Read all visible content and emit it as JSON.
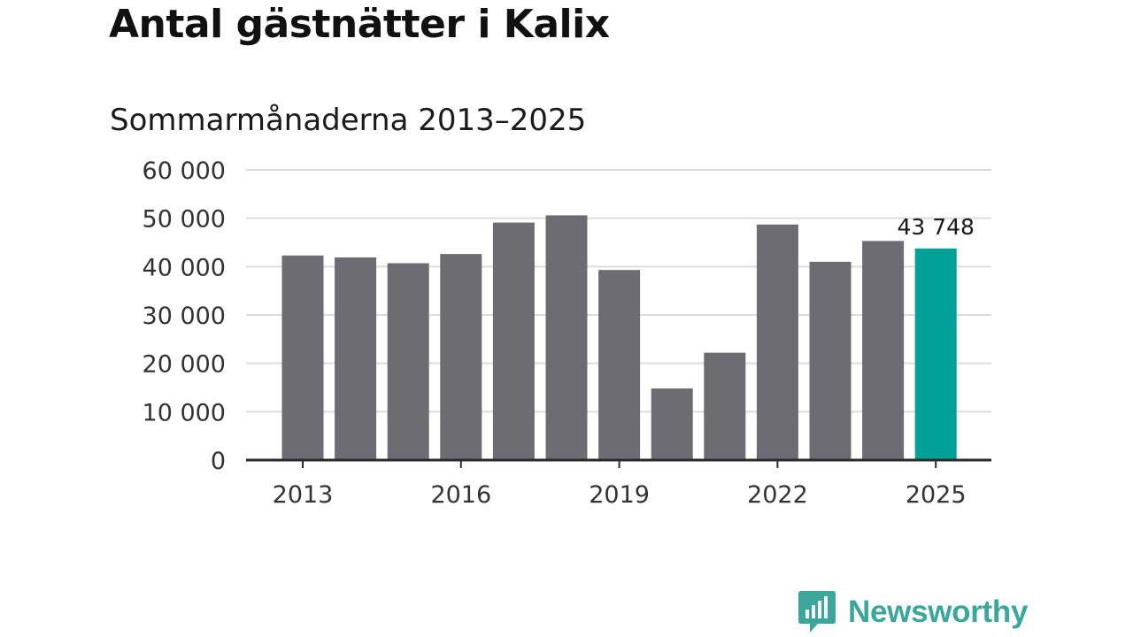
{
  "header": {
    "title": "Antal gästnätter i Kalix",
    "subtitle": "Sommarmånaderna 2013–2025"
  },
  "chart_data": {
    "type": "bar",
    "categories": [
      "2013",
      "2014",
      "2015",
      "2016",
      "2017",
      "2018",
      "2019",
      "2020",
      "2021",
      "2022",
      "2023",
      "2024",
      "2025"
    ],
    "values": [
      42300,
      41900,
      40700,
      42600,
      49100,
      50600,
      39300,
      14800,
      22200,
      48700,
      41000,
      45300,
      43748
    ],
    "title": "Antal gästnätter i Kalix",
    "subtitle": "Sommarmånaderna 2013–2025",
    "xlabel": "",
    "ylabel": "",
    "ylim": [
      0,
      60000
    ],
    "y_ticks": [
      0,
      10000,
      20000,
      30000,
      40000,
      50000,
      60000
    ],
    "y_tick_labels": [
      "0",
      "10 000",
      "20 000",
      "30 000",
      "40 000",
      "50 000",
      "60 000"
    ],
    "x_tick_labels": [
      "2013",
      "2016",
      "2019",
      "2022",
      "2025"
    ],
    "highlight_category": "2025",
    "data_labels": [
      {
        "category": "2025",
        "text": "43 748"
      }
    ],
    "grid": true,
    "legend": "none",
    "colors": {
      "bar": "#6d6c72",
      "highlight": "#00a196",
      "grid": "#dcdcdc",
      "axis": "#2b2b2b"
    }
  },
  "branding": {
    "logo_text": "Newsworthy",
    "logo_color": "#3aa79a"
  }
}
